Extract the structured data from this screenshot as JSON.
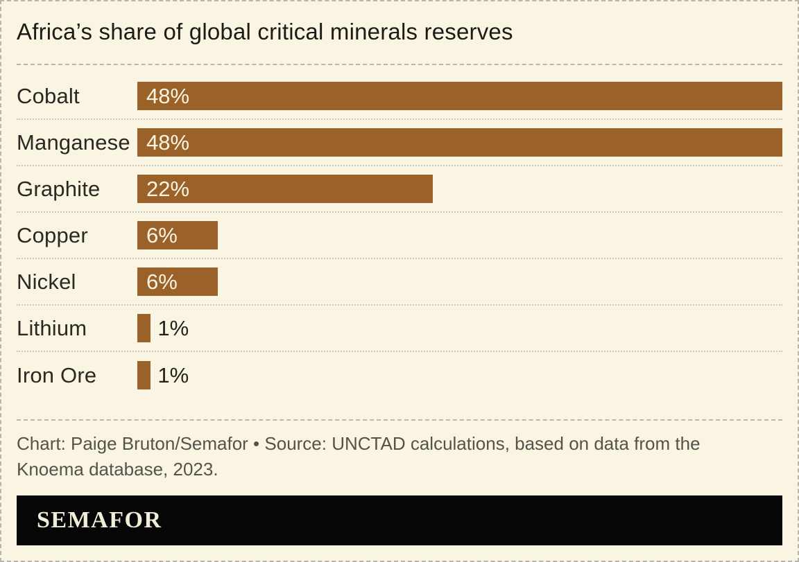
{
  "title": "Africa’s share of global critical minerals reserves",
  "chart_data": {
    "type": "bar",
    "orientation": "horizontal",
    "title": "Africa’s share of global critical minerals reserves",
    "categories": [
      "Cobalt",
      "Manganese",
      "Graphite",
      "Copper",
      "Nickel",
      "Lithium",
      "Iron Ore"
    ],
    "values": [
      48,
      48,
      22,
      6,
      6,
      1,
      1
    ],
    "unit": "%",
    "scale_max": 48,
    "inside_label_threshold": 2,
    "grid": "off",
    "legend": "none",
    "value_label_position": "inside bar for large values, right of bar for 1% values"
  },
  "footer": {
    "credit_line1": "Chart: Paige Bruton/Semafor • Source: UNCTAD calculations, based on data from the",
    "credit_line2": "Knoema database, 2023."
  },
  "branding": {
    "logo_text": "SEMAFOR"
  },
  "colors": {
    "background": "#f9f5e2",
    "bar": "#9a6229",
    "bar_inside_label": "#f9f5e2",
    "outside_label": "#23221e",
    "title_text": "#1c1b17",
    "credit_text": "#54524b",
    "banner_background": "#060606",
    "logo_text": "#f2edd8",
    "separator": "#bbb8ab"
  }
}
